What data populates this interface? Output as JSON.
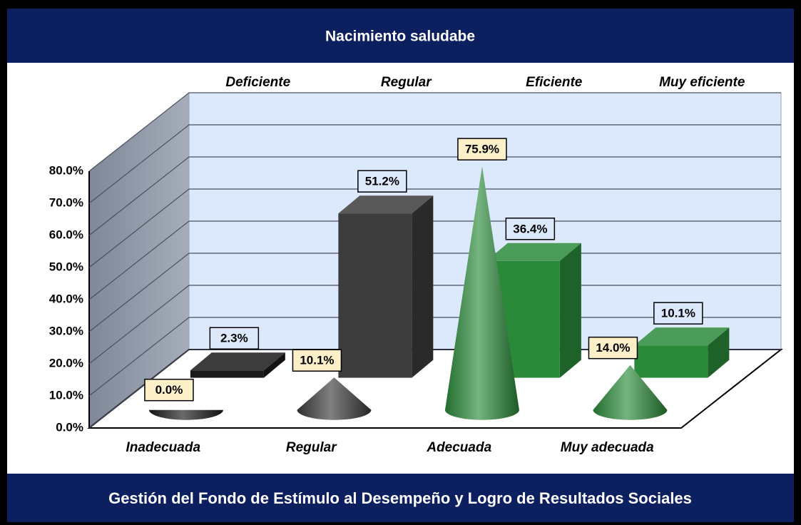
{
  "chart_data": {
    "type": "cone-box-3d",
    "title": "Nacimiento saludabe",
    "footer": "Gestión  del Fondo de Estímulo al Desempeño y Logro de Resultados Sociales",
    "ylim": [
      0,
      80
    ],
    "yticks": [
      {
        "value": 0,
        "label": "0.0%"
      },
      {
        "value": 10,
        "label": "10.0%"
      },
      {
        "value": 20,
        "label": "20.0%"
      },
      {
        "value": 30,
        "label": "30.0%"
      },
      {
        "value": 40,
        "label": "40.0%"
      },
      {
        "value": 50,
        "label": "50.0%"
      },
      {
        "value": 60,
        "label": "60.0%"
      },
      {
        "value": 70,
        "label": "70.0%"
      },
      {
        "value": 80,
        "label": "80.0%"
      }
    ],
    "front": {
      "type": "cone",
      "categories": [
        "Inadecuada",
        "Regular",
        "Adecuada",
        "Muy adecuada"
      ],
      "values": [
        0.0,
        10.1,
        75.9,
        14.0
      ],
      "value_labels": [
        "0.0%",
        "10.1%",
        "75.9%",
        "14.0%"
      ],
      "colors": [
        "#1a1a1a",
        "#3c3c3c",
        "#2b8a3a",
        "#2b8a3a"
      ]
    },
    "back": {
      "type": "box",
      "categories": [
        "Deficiente",
        "Regular",
        "Eficiente",
        "Muy eficiente"
      ],
      "values": [
        2.3,
        51.2,
        36.4,
        10.1
      ],
      "value_labels": [
        "2.3%",
        "51.2%",
        "36.4%",
        "10.1%"
      ],
      "colors": [
        "#1a1a1a",
        "#3c3c3c",
        "#2b8a3a",
        "#2b8a3a"
      ]
    }
  }
}
